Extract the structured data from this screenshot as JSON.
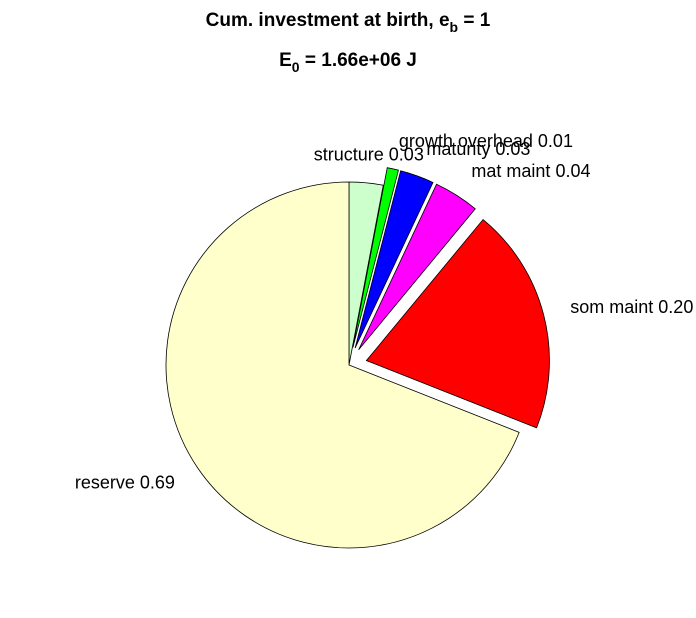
{
  "chart_data": {
    "type": "pie",
    "title": [
      "Cum. investment at birth, e",
      "b",
      " = 1"
    ],
    "subtitle": [
      "E",
      "0",
      " = 1.66e+06 J"
    ],
    "categories": [
      "structure",
      "growth overhead",
      "maturity",
      "mat maint",
      "som maint",
      "reserve"
    ],
    "values": [
      0.03,
      0.01,
      0.03,
      0.04,
      0.2,
      0.69
    ],
    "value_labels": [
      "0.03",
      "0.01",
      "0.03",
      "0.04",
      "0.20",
      "0.69"
    ],
    "colors": [
      "#ccffcc",
      "#00ff00",
      "#0000ff",
      "#ff00ff",
      "#ff0000",
      "#ffffcc"
    ],
    "explode": [
      false,
      true,
      true,
      true,
      true,
      false
    ]
  }
}
